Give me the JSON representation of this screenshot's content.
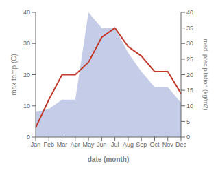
{
  "chart_data": {
    "type": "line",
    "x_label": "date (month)",
    "y_label": "max temp (C)",
    "y2_label": "med. precipitation (kg/m2)",
    "categories": [
      "Jan",
      "Feb",
      "Mar",
      "Apr",
      "May",
      "Jun",
      "Jul",
      "Aug",
      "Sep",
      "Oct",
      "Nov",
      "Dec"
    ],
    "series": [
      {
        "type": "area",
        "axis": "y2",
        "color": "#c5cce8",
        "values": [
          8,
          9,
          12,
          12,
          40,
          35,
          35,
          27,
          21,
          16,
          16,
          11
        ]
      },
      {
        "type": "line",
        "color": "#c0392b",
        "values": [
          3,
          12,
          20,
          20,
          24,
          32,
          35,
          29,
          26,
          21,
          21,
          14
        ]
      }
    ],
    "ylim": [
      0,
      40
    ],
    "yticks": [
      0,
      10,
      20,
      30,
      40
    ],
    "y2lim": [
      0,
      40
    ],
    "y2ticks": [
      0,
      5,
      10,
      15,
      20,
      25,
      30,
      35,
      40
    ],
    "grid": false
  }
}
